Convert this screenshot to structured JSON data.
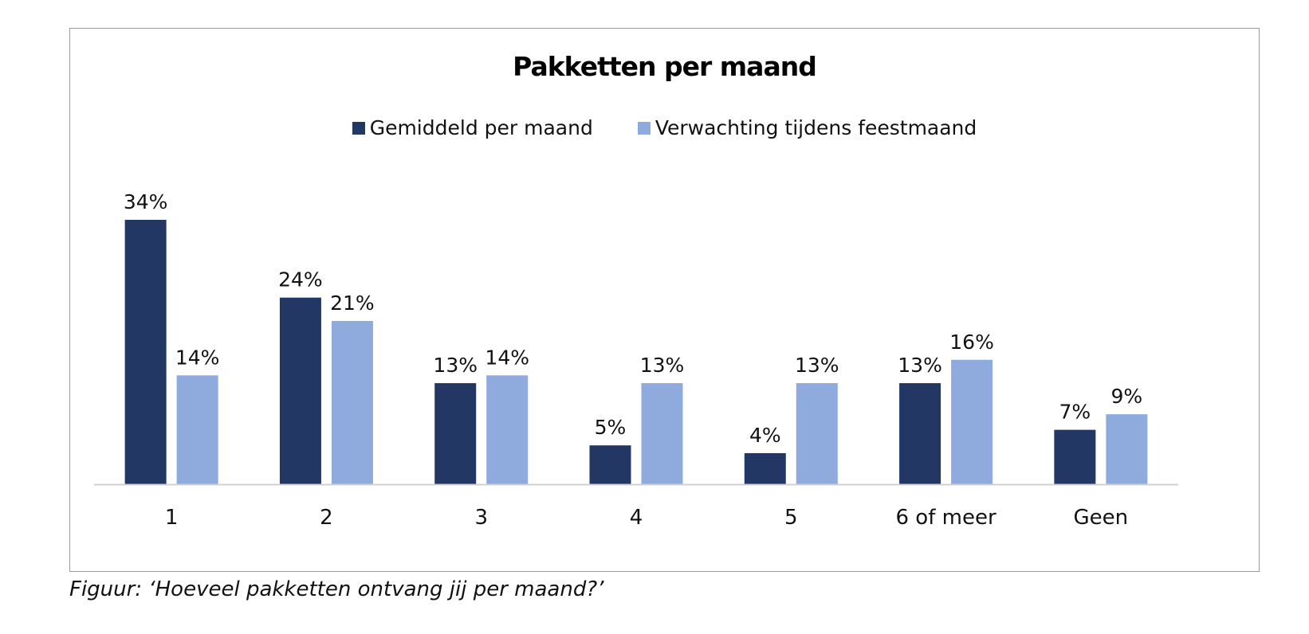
{
  "caption": "Figuur: ‘Hoeveel pakketten ontvang jij per maand?’",
  "chart_data": {
    "type": "bar",
    "title": "Pakketten per maand",
    "categories": [
      "1",
      "2",
      "3",
      "4",
      "5",
      "6 of meer",
      "Geen"
    ],
    "series": [
      {
        "name": "Gemiddeld per maand",
        "color": "#223763",
        "values": [
          34,
          24,
          13,
          5,
          4,
          13,
          7
        ]
      },
      {
        "name": "Verwachting tijdens feestmaand",
        "color": "#8faadc",
        "values": [
          14,
          21,
          14,
          13,
          13,
          16,
          9
        ]
      }
    ],
    "value_suffix": "%",
    "xlabel": "",
    "ylabel": "",
    "ylim": [
      0,
      35
    ],
    "grid": false,
    "legend_position": "top"
  }
}
